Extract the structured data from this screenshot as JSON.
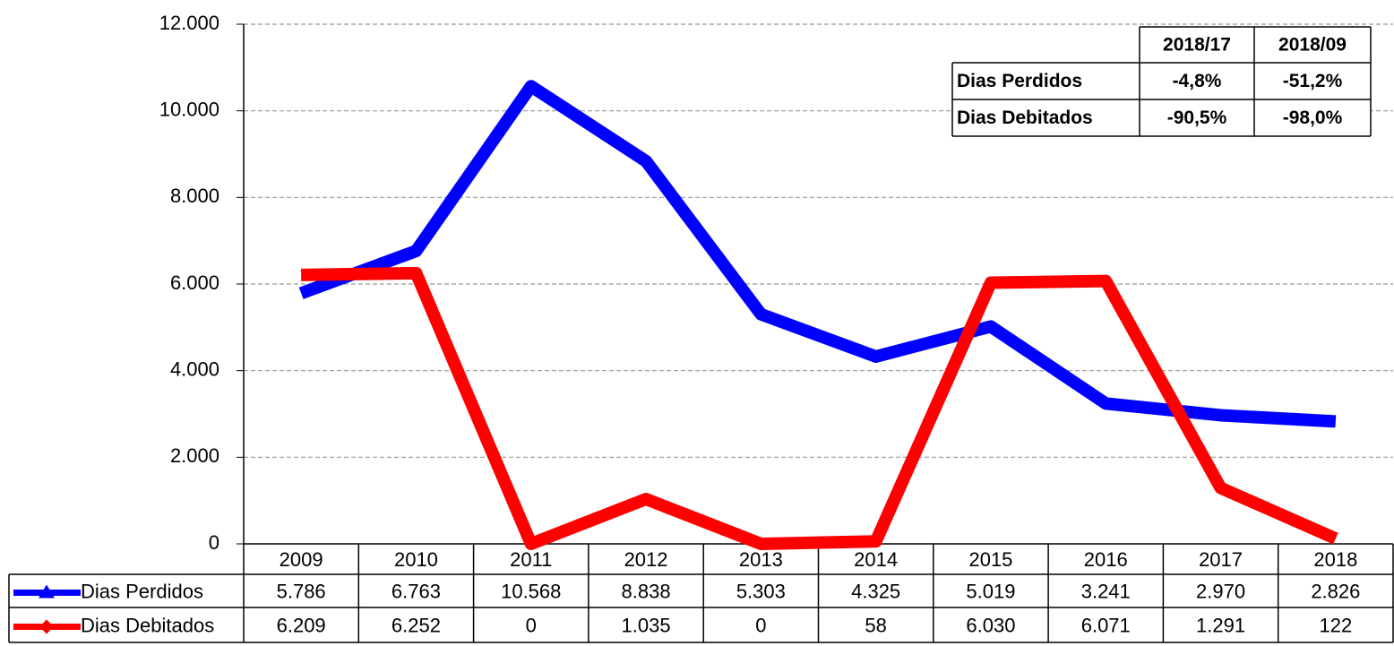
{
  "chart_data": {
    "type": "line",
    "categories": [
      "2009",
      "2010",
      "2011",
      "2012",
      "2013",
      "2014",
      "2015",
      "2016",
      "2017",
      "2018"
    ],
    "series": [
      {
        "name": "Dias Perdidos",
        "color": "#0000ff",
        "marker": "triangle",
        "values": [
          5786,
          6763,
          10568,
          8838,
          5303,
          4325,
          5019,
          3241,
          2970,
          2826
        ],
        "value_labels": [
          "5.786",
          "6.763",
          "10.568",
          "8.838",
          "5.303",
          "4.325",
          "5.019",
          "3.241",
          "2.970",
          "2.826"
        ]
      },
      {
        "name": "Dias Debitados",
        "color": "#ff0000",
        "marker": "diamond",
        "values": [
          6209,
          6252,
          0,
          1035,
          0,
          58,
          6030,
          6071,
          1291,
          122
        ],
        "value_labels": [
          "6.209",
          "6.252",
          "0",
          "1.035",
          "0",
          "58",
          "6.030",
          "6.071",
          "1.291",
          "122"
        ]
      }
    ],
    "ylim": [
      0,
      12000
    ],
    "yticks": [
      0,
      {
        "value": 2000,
        "label": "2.000"
      },
      {
        "value": 4000,
        "label": "4.000"
      },
      {
        "value": 6000,
        "label": "6.000"
      },
      {
        "value": 8000,
        "label": "8.000"
      },
      {
        "value": 10000,
        "label": "10.000"
      },
      {
        "value": 12000,
        "label": "12.000"
      }
    ],
    "grid": true,
    "summary_table": {
      "columns": [
        "2018/17",
        "2018/09"
      ],
      "rows": [
        {
          "name": "Dias Perdidos",
          "values": [
            "-4,8%",
            "-51,2%"
          ]
        },
        {
          "name": "Dias Debitados",
          "values": [
            "-90,5%",
            "-98,0%"
          ]
        }
      ]
    }
  }
}
